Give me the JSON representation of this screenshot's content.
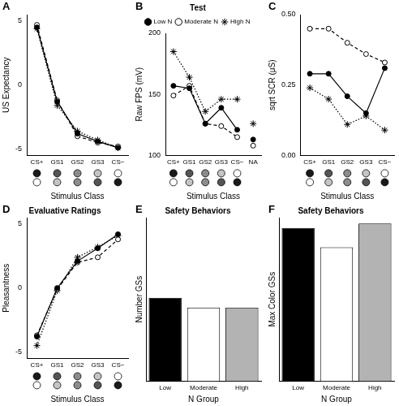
{
  "chart_data": [
    {
      "panel": "A",
      "type": "line",
      "x_label": "Stimulus Class",
      "y_label": "US Expectancy",
      "categories": [
        "CS+",
        "GS1",
        "GS2",
        "GS3",
        "CS−"
      ],
      "series": [
        {
          "name": "Low N",
          "color": "#000000",
          "marker": "circle",
          "line_style": "solid",
          "values": [
            4.5,
            -1.3,
            -3.8,
            -4.4,
            -4.9
          ]
        },
        {
          "name": "Moderate N",
          "color": "#000000",
          "marker": "open_circle",
          "line_style": "dashed",
          "values": [
            4.7,
            -1.2,
            -4.0,
            -4.5,
            -4.8
          ]
        },
        {
          "name": "High N",
          "color": "#000000",
          "marker": "star",
          "line_style": "dotted",
          "values": [
            4.4,
            -1.6,
            -3.6,
            -4.3,
            -4.9
          ]
        }
      ],
      "ylim": [
        -5.5,
        5.5
      ],
      "yticks": [
        -5,
        0,
        5
      ],
      "grid": false
    },
    {
      "panel": "B",
      "type": "line",
      "title": "Test",
      "x_label": "Stimulus Class",
      "y_label": "Raw FPS (mV)",
      "categories": [
        "CS+",
        "GS1",
        "GS2",
        "GS3",
        "CS−",
        "NA"
      ],
      "series": [
        {
          "name": "Low N",
          "color": "#000000",
          "marker": "circle",
          "line_style": "solid",
          "values": [
            157,
            155,
            126,
            139,
            121,
            113
          ]
        },
        {
          "name": "Moderate N",
          "color": "#000000",
          "marker": "open_circle",
          "line_style": "dashed",
          "values": [
            149,
            157,
            126,
            124,
            115,
            108
          ]
        },
        {
          "name": "High N",
          "color": "#000000",
          "marker": "star",
          "line_style": "dotted",
          "values": [
            185,
            164,
            136,
            146,
            146,
            126
          ]
        }
      ],
      "ylim": [
        100,
        200
      ],
      "yticks": [
        100,
        150,
        200
      ],
      "grid": false,
      "legend": "top"
    },
    {
      "panel": "C",
      "type": "line",
      "x_label": "Stimulus Class",
      "y_label": "sqrt SCR (μS)",
      "categories": [
        "CS+",
        "GS1",
        "GS2",
        "GS3",
        "CS−"
      ],
      "series": [
        {
          "name": "Low N",
          "color": "#000000",
          "marker": "circle",
          "line_style": "solid",
          "values": [
            0.29,
            0.29,
            0.21,
            0.15,
            0.31
          ]
        },
        {
          "name": "Moderate N",
          "color": "#000000",
          "marker": "open_circle",
          "line_style": "dashed",
          "values": [
            0.45,
            0.45,
            0.4,
            0.36,
            0.33
          ]
        },
        {
          "name": "High N",
          "color": "#000000",
          "marker": "star",
          "line_style": "dotted",
          "values": [
            0.24,
            0.2,
            0.11,
            0.14,
            0.09
          ]
        }
      ],
      "ylim": [
        0,
        0.5
      ],
      "yticks": [
        {
          "value": 0,
          "label": "0.00"
        },
        0.25,
        {
          "value": 0.5,
          "label": "0.50"
        }
      ],
      "grid": false
    },
    {
      "panel": "D",
      "type": "line",
      "title": "Evaluative Ratings",
      "x_label": "Stimulus Class",
      "y_label": "Pleasantness",
      "categories": [
        "CS+",
        "GS1",
        "GS2",
        "GS3",
        "CS−"
      ],
      "series": [
        {
          "name": "Low N",
          "color": "#000000",
          "marker": "circle",
          "line_style": "solid",
          "values": [
            -3.8,
            0.0,
            2.1,
            3.1,
            4.2
          ]
        },
        {
          "name": "Moderate N",
          "color": "#000000",
          "marker": "open_circle",
          "line_style": "dashed",
          "values": [
            -3.7,
            -0.1,
            2.0,
            2.4,
            3.8
          ]
        },
        {
          "name": "High N",
          "color": "#000000",
          "marker": "star",
          "line_style": "dotted",
          "values": [
            -4.5,
            -0.2,
            2.4,
            3.2,
            4.1
          ]
        }
      ],
      "ylim": [
        -5.5,
        5.5
      ],
      "yticks": [
        -5,
        0,
        5
      ],
      "grid": false
    },
    {
      "panel": "E",
      "type": "bar",
      "title": "Safety Behaviors",
      "x_label": "N Group",
      "y_label": "Number GSs",
      "categories": [
        "Low",
        "Moderate",
        "High"
      ],
      "values": [
        2.55,
        2.25,
        2.25
      ],
      "colors": [
        "#000000",
        "#ffffff",
        "#b3b3b3"
      ],
      "ylim": [
        0,
        5
      ],
      "grid": false,
      "tick_labels": "x"
    },
    {
      "panel": "F",
      "type": "bar",
      "title": "Safety Behaviors",
      "x_label": "N Group",
      "y_label": "Max Color GSs",
      "categories": [
        "Low",
        "Moderate",
        "High"
      ],
      "values": [
        5.15,
        4.5,
        5.3
      ],
      "colors": [
        "#000000",
        "#ffffff",
        "#b3b3b3"
      ],
      "ylim": [
        0,
        5.5
      ],
      "grid": false,
      "tick_labels": "x"
    }
  ]
}
